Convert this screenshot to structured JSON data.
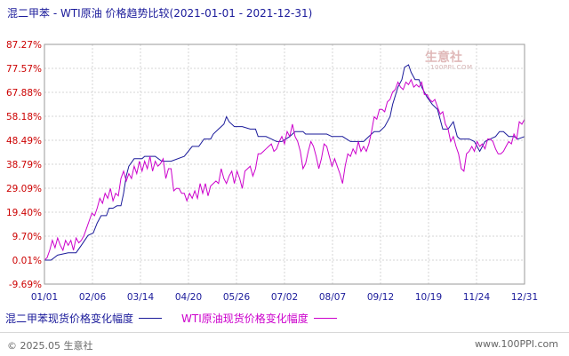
{
  "header": {
    "title": "混二甲苯 - WTI原油 价格趋势比较",
    "range": "(2021-01-01 - 2021-12-31)"
  },
  "watermark": {
    "text": "生意社",
    "sub": "100PPI.COM"
  },
  "legend": [
    {
      "label": "混二甲苯现货价格变化幅度",
      "color": "#1a1a9a"
    },
    {
      "label": "WTI原油现货价格变化幅度",
      "color": "#cc00cc"
    }
  ],
  "footer": {
    "copyright": "© 2025.05 生意社",
    "site": "www.100PPI.com"
  },
  "chart_data": {
    "type": "line",
    "ylim": [
      -9.69,
      87.27
    ],
    "y_ticks": [
      "87.27%",
      "77.57%",
      "67.88%",
      "58.18%",
      "48.49%",
      "38.79%",
      "29.09%",
      "19.40%",
      "9.70%",
      "0.01%",
      "-9.69%"
    ],
    "x_ticks": [
      "01/01",
      "02/06",
      "03/14",
      "04/20",
      "05/26",
      "07/02",
      "08/07",
      "09/12",
      "10/19",
      "11/24",
      "12/31"
    ],
    "grid": true,
    "series": [
      {
        "name": "混二甲苯现货价格变化幅度",
        "color": "#1a1a9a",
        "points": [
          [
            0,
            0
          ],
          [
            5,
            0
          ],
          [
            10,
            2
          ],
          [
            18,
            3
          ],
          [
            24,
            3
          ],
          [
            28,
            6
          ],
          [
            33,
            10
          ],
          [
            37,
            11
          ],
          [
            40,
            15
          ],
          [
            43,
            18
          ],
          [
            47,
            18
          ],
          [
            49,
            21
          ],
          [
            52,
            21
          ],
          [
            55,
            22
          ],
          [
            58,
            22
          ],
          [
            60,
            27
          ],
          [
            62,
            34
          ],
          [
            64,
            38
          ],
          [
            68,
            41
          ],
          [
            74,
            41
          ],
          [
            76,
            42
          ],
          [
            80,
            42
          ],
          [
            84,
            42
          ],
          [
            89,
            40
          ],
          [
            96,
            40
          ],
          [
            106,
            42
          ],
          [
            112,
            46
          ],
          [
            117,
            46
          ],
          [
            121,
            49
          ],
          [
            126,
            49
          ],
          [
            128,
            51
          ],
          [
            132,
            53
          ],
          [
            136,
            55
          ],
          [
            138,
            58
          ],
          [
            140,
            56
          ],
          [
            144,
            54
          ],
          [
            150,
            54
          ],
          [
            156,
            53
          ],
          [
            160,
            53
          ],
          [
            162,
            50
          ],
          [
            168,
            50
          ],
          [
            172,
            49
          ],
          [
            176,
            48
          ],
          [
            180,
            48
          ],
          [
            186,
            50
          ],
          [
            190,
            52
          ],
          [
            196,
            52
          ],
          [
            198,
            51
          ],
          [
            202,
            51
          ],
          [
            206,
            51
          ],
          [
            210,
            51
          ],
          [
            214,
            51
          ],
          [
            218,
            50
          ],
          [
            222,
            50
          ],
          [
            226,
            50
          ],
          [
            232,
            48
          ],
          [
            238,
            48
          ],
          [
            242,
            48
          ],
          [
            246,
            50
          ],
          [
            250,
            52
          ],
          [
            254,
            52
          ],
          [
            258,
            54
          ],
          [
            262,
            58
          ],
          [
            264,
            63
          ],
          [
            268,
            70
          ],
          [
            271,
            73
          ],
          [
            273,
            78
          ],
          [
            276,
            79
          ],
          [
            278,
            76
          ],
          [
            281,
            73
          ],
          [
            284,
            73
          ],
          [
            286,
            70
          ],
          [
            290,
            66
          ],
          [
            294,
            63
          ],
          [
            298,
            61
          ],
          [
            302,
            53
          ],
          [
            306,
            53
          ],
          [
            310,
            56
          ],
          [
            313,
            50
          ],
          [
            315,
            49
          ],
          [
            318,
            49
          ],
          [
            322,
            49
          ],
          [
            326,
            48
          ],
          [
            330,
            44
          ],
          [
            334,
            48
          ],
          [
            338,
            49
          ],
          [
            342,
            50
          ],
          [
            345,
            52
          ],
          [
            348,
            52
          ],
          [
            352,
            50
          ],
          [
            356,
            50
          ],
          [
            359,
            49
          ],
          [
            364,
            50
          ]
        ]
      },
      {
        "name": "WTI原油现货价格变化幅度",
        "color": "#cc00cc",
        "points": [
          [
            0,
            0
          ],
          [
            2,
            1
          ],
          [
            4,
            4
          ],
          [
            6,
            8
          ],
          [
            8,
            5
          ],
          [
            10,
            9
          ],
          [
            12,
            6
          ],
          [
            14,
            4
          ],
          [
            16,
            8
          ],
          [
            18,
            6
          ],
          [
            20,
            8
          ],
          [
            22,
            4
          ],
          [
            24,
            9
          ],
          [
            26,
            7
          ],
          [
            28,
            8
          ],
          [
            30,
            10
          ],
          [
            32,
            13
          ],
          [
            34,
            16
          ],
          [
            36,
            19
          ],
          [
            38,
            18
          ],
          [
            40,
            21
          ],
          [
            42,
            25
          ],
          [
            44,
            23
          ],
          [
            46,
            27
          ],
          [
            48,
            25
          ],
          [
            50,
            29
          ],
          [
            52,
            24
          ],
          [
            54,
            27
          ],
          [
            56,
            26
          ],
          [
            58,
            33
          ],
          [
            60,
            36
          ],
          [
            62,
            32
          ],
          [
            64,
            35
          ],
          [
            66,
            33
          ],
          [
            68,
            38
          ],
          [
            70,
            35
          ],
          [
            72,
            40
          ],
          [
            74,
            36
          ],
          [
            76,
            40
          ],
          [
            78,
            37
          ],
          [
            80,
            42
          ],
          [
            82,
            36
          ],
          [
            84,
            40
          ],
          [
            86,
            38
          ],
          [
            88,
            39
          ],
          [
            90,
            41
          ],
          [
            92,
            33
          ],
          [
            94,
            37
          ],
          [
            96,
            37
          ],
          [
            98,
            28
          ],
          [
            100,
            29
          ],
          [
            102,
            29
          ],
          [
            104,
            27
          ],
          [
            106,
            27
          ],
          [
            108,
            24
          ],
          [
            110,
            27
          ],
          [
            112,
            25
          ],
          [
            114,
            28
          ],
          [
            116,
            25
          ],
          [
            118,
            31
          ],
          [
            120,
            27
          ],
          [
            122,
            31
          ],
          [
            124,
            26
          ],
          [
            126,
            30
          ],
          [
            128,
            31
          ],
          [
            130,
            32
          ],
          [
            132,
            31
          ],
          [
            134,
            37
          ],
          [
            136,
            33
          ],
          [
            138,
            31
          ],
          [
            140,
            34
          ],
          [
            142,
            36
          ],
          [
            144,
            31
          ],
          [
            146,
            36
          ],
          [
            148,
            33
          ],
          [
            150,
            29
          ],
          [
            152,
            36
          ],
          [
            154,
            37
          ],
          [
            156,
            38
          ],
          [
            158,
            34
          ],
          [
            160,
            37
          ],
          [
            162,
            43
          ],
          [
            164,
            43
          ],
          [
            166,
            44
          ],
          [
            168,
            45
          ],
          [
            170,
            46
          ],
          [
            172,
            47
          ],
          [
            174,
            44
          ],
          [
            176,
            45
          ],
          [
            178,
            48
          ],
          [
            180,
            50
          ],
          [
            182,
            47
          ],
          [
            184,
            52
          ],
          [
            186,
            50
          ],
          [
            188,
            55
          ],
          [
            190,
            50
          ],
          [
            192,
            48
          ],
          [
            194,
            44
          ],
          [
            196,
            37
          ],
          [
            198,
            39
          ],
          [
            200,
            44
          ],
          [
            202,
            48
          ],
          [
            204,
            46
          ],
          [
            206,
            42
          ],
          [
            208,
            37
          ],
          [
            210,
            41
          ],
          [
            212,
            47
          ],
          [
            214,
            46
          ],
          [
            216,
            42
          ],
          [
            218,
            38
          ],
          [
            220,
            41
          ],
          [
            222,
            38
          ],
          [
            224,
            35
          ],
          [
            226,
            31
          ],
          [
            228,
            38
          ],
          [
            230,
            43
          ],
          [
            232,
            42
          ],
          [
            234,
            45
          ],
          [
            236,
            43
          ],
          [
            238,
            48
          ],
          [
            240,
            44
          ],
          [
            242,
            46
          ],
          [
            244,
            44
          ],
          [
            246,
            47
          ],
          [
            248,
            52
          ],
          [
            250,
            58
          ],
          [
            252,
            57
          ],
          [
            254,
            61
          ],
          [
            256,
            61
          ],
          [
            258,
            60
          ],
          [
            260,
            64
          ],
          [
            262,
            65
          ],
          [
            264,
            68
          ],
          [
            266,
            69
          ],
          [
            268,
            72
          ],
          [
            270,
            70
          ],
          [
            272,
            69
          ],
          [
            274,
            72
          ],
          [
            276,
            71
          ],
          [
            278,
            73
          ],
          [
            280,
            70
          ],
          [
            282,
            71
          ],
          [
            284,
            70
          ],
          [
            286,
            72
          ],
          [
            288,
            67
          ],
          [
            290,
            67
          ],
          [
            292,
            65
          ],
          [
            294,
            64
          ],
          [
            296,
            65
          ],
          [
            298,
            62
          ],
          [
            300,
            59
          ],
          [
            302,
            60
          ],
          [
            304,
            55
          ],
          [
            306,
            53
          ],
          [
            308,
            48
          ],
          [
            310,
            50
          ],
          [
            312,
            46
          ],
          [
            314,
            43
          ],
          [
            316,
            37
          ],
          [
            318,
            36
          ],
          [
            320,
            43
          ],
          [
            322,
            44
          ],
          [
            324,
            46
          ],
          [
            326,
            44
          ],
          [
            328,
            48
          ],
          [
            330,
            46
          ],
          [
            332,
            47
          ],
          [
            334,
            45
          ],
          [
            336,
            49
          ],
          [
            338,
            49
          ],
          [
            340,
            48
          ],
          [
            342,
            45
          ],
          [
            344,
            43
          ],
          [
            346,
            43
          ],
          [
            348,
            44
          ],
          [
            350,
            46
          ],
          [
            352,
            48
          ],
          [
            354,
            47
          ],
          [
            356,
            51
          ],
          [
            358,
            49
          ],
          [
            360,
            56
          ],
          [
            362,
            55
          ],
          [
            364,
            57
          ]
        ]
      }
    ]
  }
}
